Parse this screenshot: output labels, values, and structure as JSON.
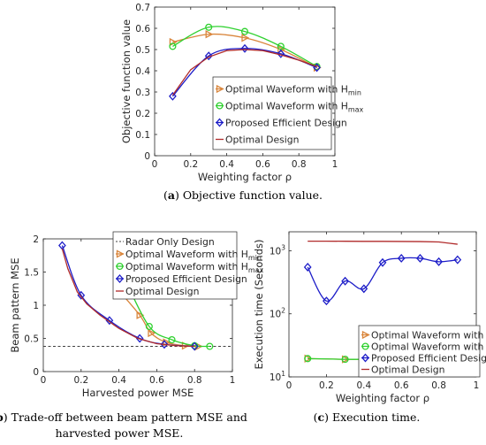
{
  "captions": {
    "a": {
      "label": "a",
      "text": "Objective function value."
    },
    "b": {
      "label": "b",
      "line1": "Trade-off between beam pattern MSE and",
      "line2": "harvested power MSE."
    },
    "c": {
      "label": "c",
      "text": "Execution time."
    }
  },
  "legend_entries": {
    "hmin": {
      "text": "Optimal Waveform with H",
      "sub": "min"
    },
    "hmax": {
      "text": "Optimal Waveform with H",
      "sub": "max"
    },
    "ped": "Proposed Efficient Design",
    "opt": "Optimal Design",
    "radar": "Radar Only Design"
  },
  "colors": {
    "hmin": "#d9853b",
    "hmax": "#2fd12f",
    "ped": "#1c1cc8",
    "opt": "#b02a2a",
    "radar": "#404040"
  },
  "chart_data": [
    {
      "id": "a",
      "type": "line",
      "xlabel": "Weighting factor ρ",
      "ylabel": "Objective function value",
      "xlim": [
        0,
        1
      ],
      "ylim": [
        0,
        0.7
      ],
      "xticks": [
        "0",
        "0.2",
        "0.4",
        "0.6",
        "0.8",
        "1"
      ],
      "yticks": [
        "0",
        "0.1",
        "0.2",
        "0.3",
        "0.4",
        "0.5",
        "0.6",
        "0.7"
      ],
      "grid": false,
      "legend_position": "lower-right",
      "series": [
        {
          "key": "hmin",
          "marker": "triangle-right",
          "x": [
            0.1,
            0.3,
            0.5,
            0.7,
            0.9
          ],
          "y": [
            0.535,
            0.572,
            0.555,
            0.5,
            0.415
          ]
        },
        {
          "key": "hmax",
          "marker": "circle",
          "x": [
            0.1,
            0.3,
            0.5,
            0.7,
            0.9
          ],
          "y": [
            0.515,
            0.605,
            0.585,
            0.515,
            0.42
          ]
        },
        {
          "key": "ped",
          "marker": "diamond",
          "x": [
            0.1,
            0.3,
            0.5,
            0.7,
            0.9
          ],
          "y": [
            0.28,
            0.47,
            0.505,
            0.48,
            0.415
          ]
        },
        {
          "key": "opt",
          "marker": "none",
          "x": [
            0.1,
            0.2,
            0.3,
            0.4,
            0.5,
            0.6,
            0.7,
            0.8,
            0.9
          ],
          "y": [
            0.285,
            0.405,
            0.465,
            0.495,
            0.5,
            0.495,
            0.475,
            0.45,
            0.42
          ]
        }
      ]
    },
    {
      "id": "b",
      "type": "line",
      "xlabel": "Harvested power MSE",
      "ylabel": "Beam pattern MSE",
      "xlim": [
        0,
        1
      ],
      "ylim": [
        0,
        2
      ],
      "xticks": [
        "0",
        "0.2",
        "0.4",
        "0.6",
        "0.8",
        "1"
      ],
      "yticks": [
        "0",
        "0.5",
        "1",
        "1.5",
        "2"
      ],
      "grid": false,
      "legend_position": "top-right",
      "reference_line": {
        "key": "radar",
        "y": 0.38
      },
      "series": [
        {
          "key": "hmin",
          "marker": "triangle-right",
          "x": [
            0.4,
            0.51,
            0.57,
            0.65,
            0.75,
            0.82
          ],
          "y": [
            1.22,
            0.85,
            0.58,
            0.44,
            0.39,
            0.38
          ]
        },
        {
          "key": "hmax",
          "marker": "circle",
          "x": [
            0.43,
            0.56,
            0.68,
            0.8,
            0.88
          ],
          "y": [
            1.4,
            0.68,
            0.48,
            0.39,
            0.38
          ]
        },
        {
          "key": "ped",
          "marker": "diamond",
          "x": [
            0.1,
            0.2,
            0.35,
            0.51,
            0.64,
            0.8
          ],
          "y": [
            1.9,
            1.15,
            0.77,
            0.5,
            0.41,
            0.38
          ]
        },
        {
          "key": "opt",
          "marker": "none",
          "x": [
            0.1,
            0.13,
            0.18,
            0.23,
            0.3,
            0.4,
            0.5,
            0.6,
            0.7,
            0.8
          ],
          "y": [
            1.85,
            1.55,
            1.2,
            1.02,
            0.85,
            0.65,
            0.5,
            0.42,
            0.39,
            0.38
          ]
        }
      ]
    },
    {
      "id": "c",
      "type": "line",
      "xlabel": "Weighting factor ρ",
      "ylabel": "Execution time (Seconds)",
      "xlim": [
        0,
        1
      ],
      "ylim": [
        10,
        2000
      ],
      "yscale": "log",
      "xticks": [
        "0",
        "0.2",
        "0.4",
        "0.6",
        "0.8",
        "1"
      ],
      "yticks": [
        {
          "base": "10",
          "exp": "1",
          "value": 10
        },
        {
          "base": "10",
          "exp": "2",
          "value": 100
        },
        {
          "base": "10",
          "exp": "3",
          "value": 1000
        }
      ],
      "grid": false,
      "legend_position": "lower-right",
      "series": [
        {
          "key": "hmin",
          "marker": "triangle-right",
          "x": [
            0.1,
            0.3,
            0.5,
            0.7,
            0.9
          ],
          "y": [
            19.5,
            19,
            19,
            18.5,
            16.5
          ]
        },
        {
          "key": "hmax",
          "marker": "circle",
          "x": [
            0.1,
            0.3,
            0.5,
            0.7,
            0.9
          ],
          "y": [
            19.5,
            19,
            19,
            18.5,
            16.5
          ]
        },
        {
          "key": "ped",
          "marker": "diamond",
          "x": [
            0.1,
            0.2,
            0.3,
            0.4,
            0.5,
            0.6,
            0.7,
            0.8,
            0.9
          ],
          "y": [
            550,
            160,
            330,
            250,
            650,
            760,
            760,
            670,
            720
          ]
        },
        {
          "key": "opt",
          "marker": "none",
          "x": [
            0.1,
            0.2,
            0.3,
            0.4,
            0.5,
            0.6,
            0.7,
            0.8,
            0.9
          ],
          "y": [
            1420,
            1420,
            1415,
            1410,
            1410,
            1405,
            1400,
            1380,
            1270
          ]
        }
      ]
    }
  ]
}
